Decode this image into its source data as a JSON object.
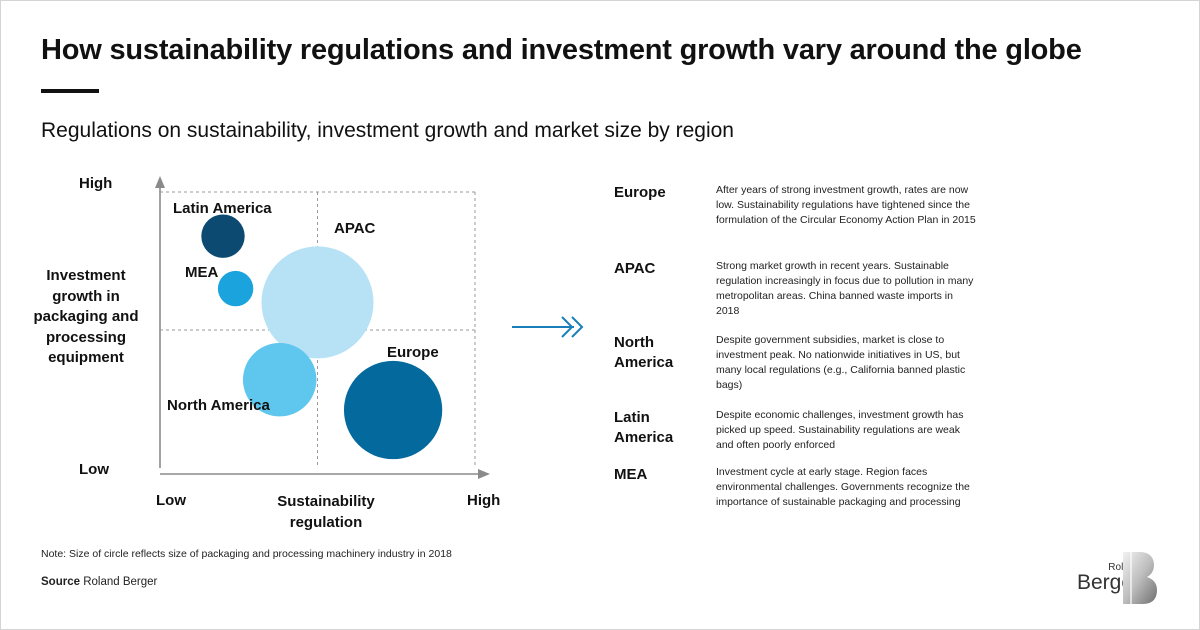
{
  "title": "How sustainability regulations and investment growth vary around the globe",
  "subtitle": "Regulations on sustainability, investment growth and market size by region",
  "chart_data": {
    "type": "scatter",
    "bubble": true,
    "xlabel": "Sustainability regulation",
    "ylabel": "Investment growth in packaging and processing equipment",
    "x_ticks": [
      "Low",
      "High"
    ],
    "y_ticks": [
      "High",
      "Low"
    ],
    "xlim": [
      0,
      10
    ],
    "ylim": [
      0,
      10
    ],
    "grid": "quadrant dashed",
    "points": [
      {
        "name": "Latin America",
        "x": 2.0,
        "y": 8.4,
        "size": 0.15,
        "color": "#0d4a72"
      },
      {
        "name": "MEA",
        "x": 2.4,
        "y": 6.5,
        "size": 0.1,
        "color": "#1aa3dc"
      },
      {
        "name": "APAC",
        "x": 5.0,
        "y": 6.0,
        "size": 1.0,
        "color": "#b7e2f6"
      },
      {
        "name": "North America",
        "x": 3.8,
        "y": 3.2,
        "size": 0.43,
        "color": "#5fc6ee"
      },
      {
        "name": "Europe",
        "x": 7.4,
        "y": 2.1,
        "size": 0.77,
        "color": "#046a9d"
      }
    ]
  },
  "regions": [
    {
      "name": "Europe",
      "desc": "After years of strong investment growth, rates are now low. Sustainability regulations have tightened since the formulation of the Circular Economy Action Plan in 2015"
    },
    {
      "name": "APAC",
      "desc": "Strong market growth in recent years. Sustainable regulation increasingly in focus due to pollution in many metropolitan areas. China banned waste imports in 2018"
    },
    {
      "name": "North America",
      "desc": "Despite government subsidies, market is close to investment peak. No nationwide initiatives in US, but many local regulations (e.g., California banned plastic bags)"
    },
    {
      "name": "Latin America",
      "desc": "Despite economic challenges, investment growth has picked up speed. Sustainability regulations are weak and often poorly enforced"
    },
    {
      "name": "MEA",
      "desc": "Investment cycle at early stage. Region faces environmental challenges. Governments recognize the importance of sustainable packaging and processing"
    }
  ],
  "note": "Note: Size of circle reflects size of packaging and processing machinery industry in 2018",
  "source": {
    "label": "Source",
    "text": "Roland Berger"
  },
  "logo": {
    "line1": "Roland",
    "line2": "Berger"
  },
  "icons": {
    "arrow": "double-chevron-arrow-icon",
    "logo": "roland-berger-logo-icon"
  }
}
